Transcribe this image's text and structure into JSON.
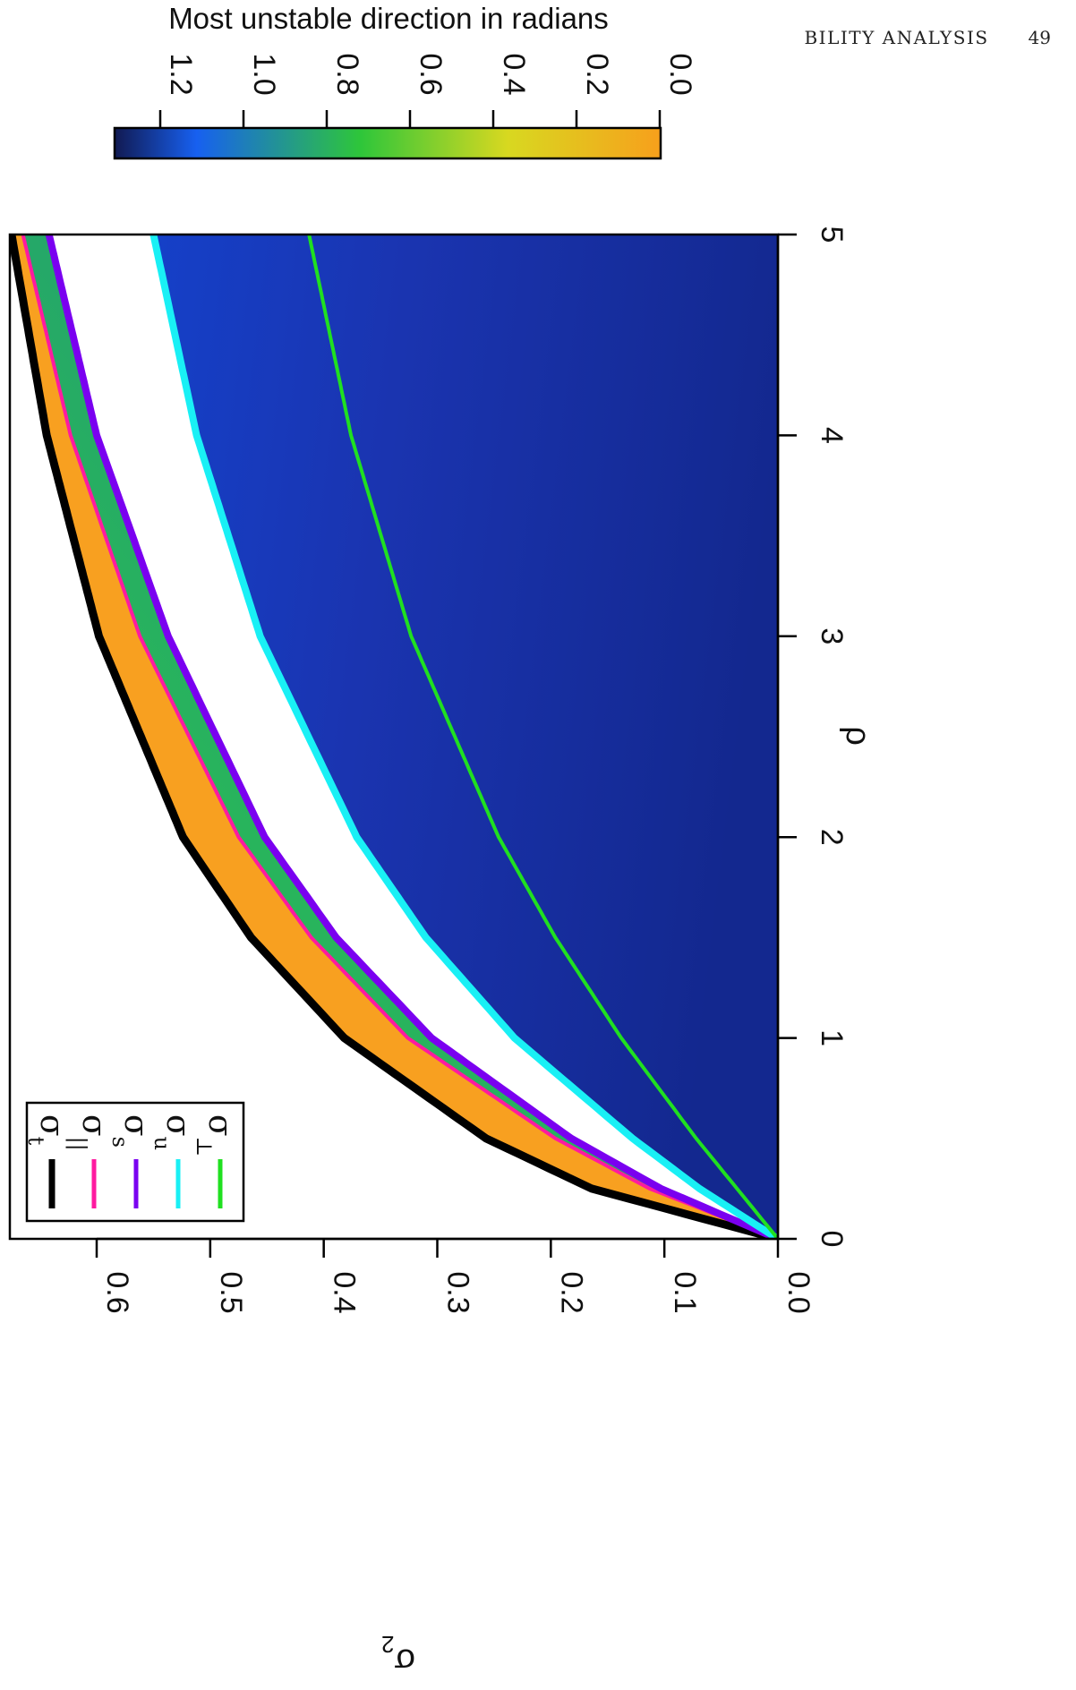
{
  "header": {
    "running_title": "BILITY ANALYSIS",
    "page_number": "49"
  },
  "colorbar": {
    "title": "Most unstable direction in radians",
    "ticks": [
      "1.2",
      "1.0",
      "0.8",
      "0.6",
      "0.4",
      "0.2",
      "0.0"
    ],
    "colors": [
      "#111a52",
      "#1760f0",
      "#2ec63a",
      "#d8d820",
      "#f7a01c"
    ]
  },
  "chart_data": {
    "type": "heatmap",
    "title": "",
    "xlabel": "ρ",
    "ylabel": "σ_2",
    "xlim": [
      0,
      5
    ],
    "ylim": [
      0,
      0.68
    ],
    "x_ticks": [
      "0",
      "1",
      "2",
      "3",
      "4",
      "5"
    ],
    "y_ticks": [
      "0.0",
      "0.1",
      "0.2",
      "0.3",
      "0.4",
      "0.5",
      "0.6"
    ],
    "color_scale_range": [
      0.0,
      1.2
    ],
    "series": [
      {
        "name": "σt",
        "color": "#000000",
        "x": [
          0,
          0.25,
          0.5,
          1,
          1.5,
          2,
          3,
          4,
          5
        ],
        "y": [
          0,
          0.164,
          0.257,
          0.382,
          0.464,
          0.524,
          0.598,
          0.644,
          0.675
        ]
      },
      {
        "name": "σ||",
        "color": "#ff1aa0",
        "x": [
          0,
          0.25,
          0.5,
          1,
          1.5,
          2,
          3,
          4,
          5
        ],
        "y": [
          0,
          0.113,
          0.196,
          0.326,
          0.411,
          0.475,
          0.562,
          0.623,
          0.665
        ]
      },
      {
        "name": "σs",
        "color": "#7a00f0",
        "x": [
          0,
          0.25,
          0.5,
          1,
          1.5,
          2,
          3,
          4,
          5
        ],
        "y": [
          0,
          0.103,
          0.182,
          0.305,
          0.389,
          0.452,
          0.537,
          0.6,
          0.642
        ]
      },
      {
        "name": "σu",
        "color": "#19f0f5",
        "x": [
          0,
          0.25,
          0.5,
          1,
          1.5,
          2,
          3,
          4,
          5
        ],
        "y": [
          0,
          0.069,
          0.128,
          0.232,
          0.31,
          0.371,
          0.456,
          0.512,
          0.55
        ]
      },
      {
        "name": "σ⊥",
        "color": "#20e020",
        "x": [
          0,
          0.25,
          0.5,
          1,
          1.5,
          2,
          3,
          4,
          5
        ],
        "y": [
          0,
          0.036,
          0.072,
          0.138,
          0.196,
          0.246,
          0.323,
          0.376,
          0.413
        ]
      }
    ],
    "legend": {
      "placement": "lower-left",
      "labels": [
        {
          "base": "σ",
          "sub": "t"
        },
        {
          "base": "σ",
          "sub": "||"
        },
        {
          "base": "σ",
          "sub": "s"
        },
        {
          "base": "σ",
          "sub": "u"
        },
        {
          "base": "σ",
          "sub": "⊥"
        }
      ]
    },
    "regions": [
      {
        "between": [
          "σt",
          "σ||"
        ],
        "color_value": 0.1
      },
      {
        "between": [
          "σ||",
          "σs"
        ],
        "color_value": 0.65
      },
      {
        "between": [
          "σs",
          "σu"
        ],
        "color_value": null
      },
      {
        "between": [
          "σu",
          "0"
        ],
        "color_value": 1.15
      }
    ]
  }
}
